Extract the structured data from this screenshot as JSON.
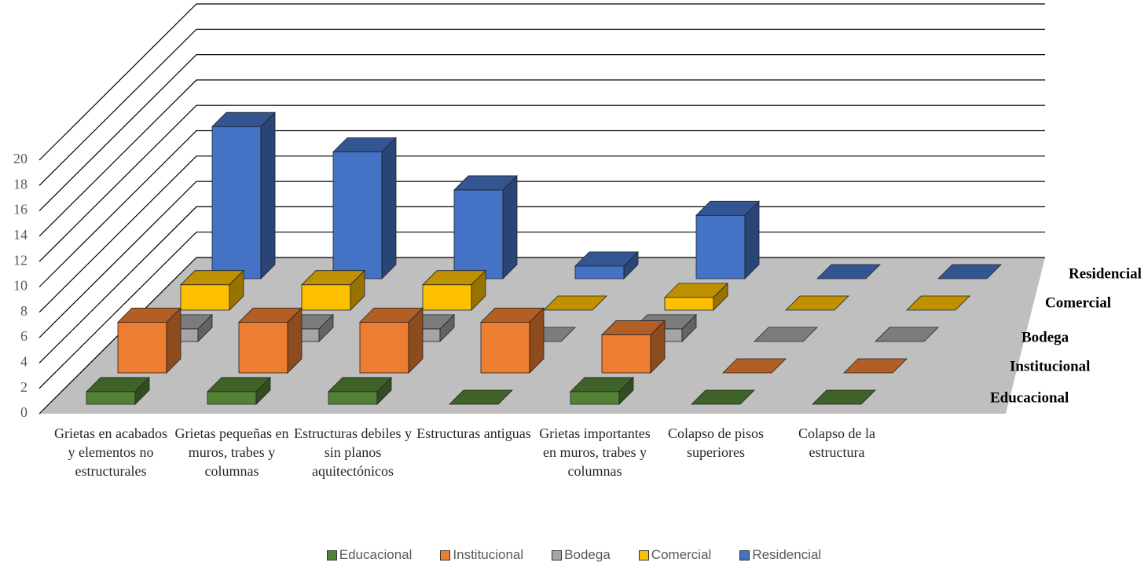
{
  "chart_data": {
    "type": "bar3d",
    "categories": [
      "Grietas en acabados y elementos no estructurales",
      "Grietas pequeñas en muros, trabes y columnas",
      "Estructuras debiles y  sin planos aquitectónicos",
      "Estructuras antiguas",
      "Grietas importantes en muros, trabes y columnas",
      "Colapso de pisos superiores",
      "Colapso de la estructura"
    ],
    "series": [
      {
        "name": "Educacional",
        "color": "#548235",
        "values": [
          1,
          1,
          1,
          0,
          1,
          0,
          0
        ]
      },
      {
        "name": "Institucional",
        "color": "#ed7d31",
        "values": [
          4,
          4,
          4,
          4,
          3,
          0,
          0
        ]
      },
      {
        "name": "Bodega",
        "color": "#a5a5a5",
        "values": [
          1,
          1,
          1,
          0,
          1,
          0,
          0
        ]
      },
      {
        "name": "Comercial",
        "color": "#ffc000",
        "values": [
          2,
          2,
          2,
          0,
          1,
          0,
          0
        ]
      },
      {
        "name": "Residencial",
        "color": "#4472c4",
        "values": [
          12,
          10,
          7,
          1,
          5,
          0,
          0
        ]
      }
    ],
    "ylim": [
      0,
      20
    ],
    "yticks": [
      0,
      2,
      4,
      6,
      8,
      10,
      12,
      14,
      16,
      18,
      20
    ],
    "grid": true,
    "legend": "bottom"
  }
}
